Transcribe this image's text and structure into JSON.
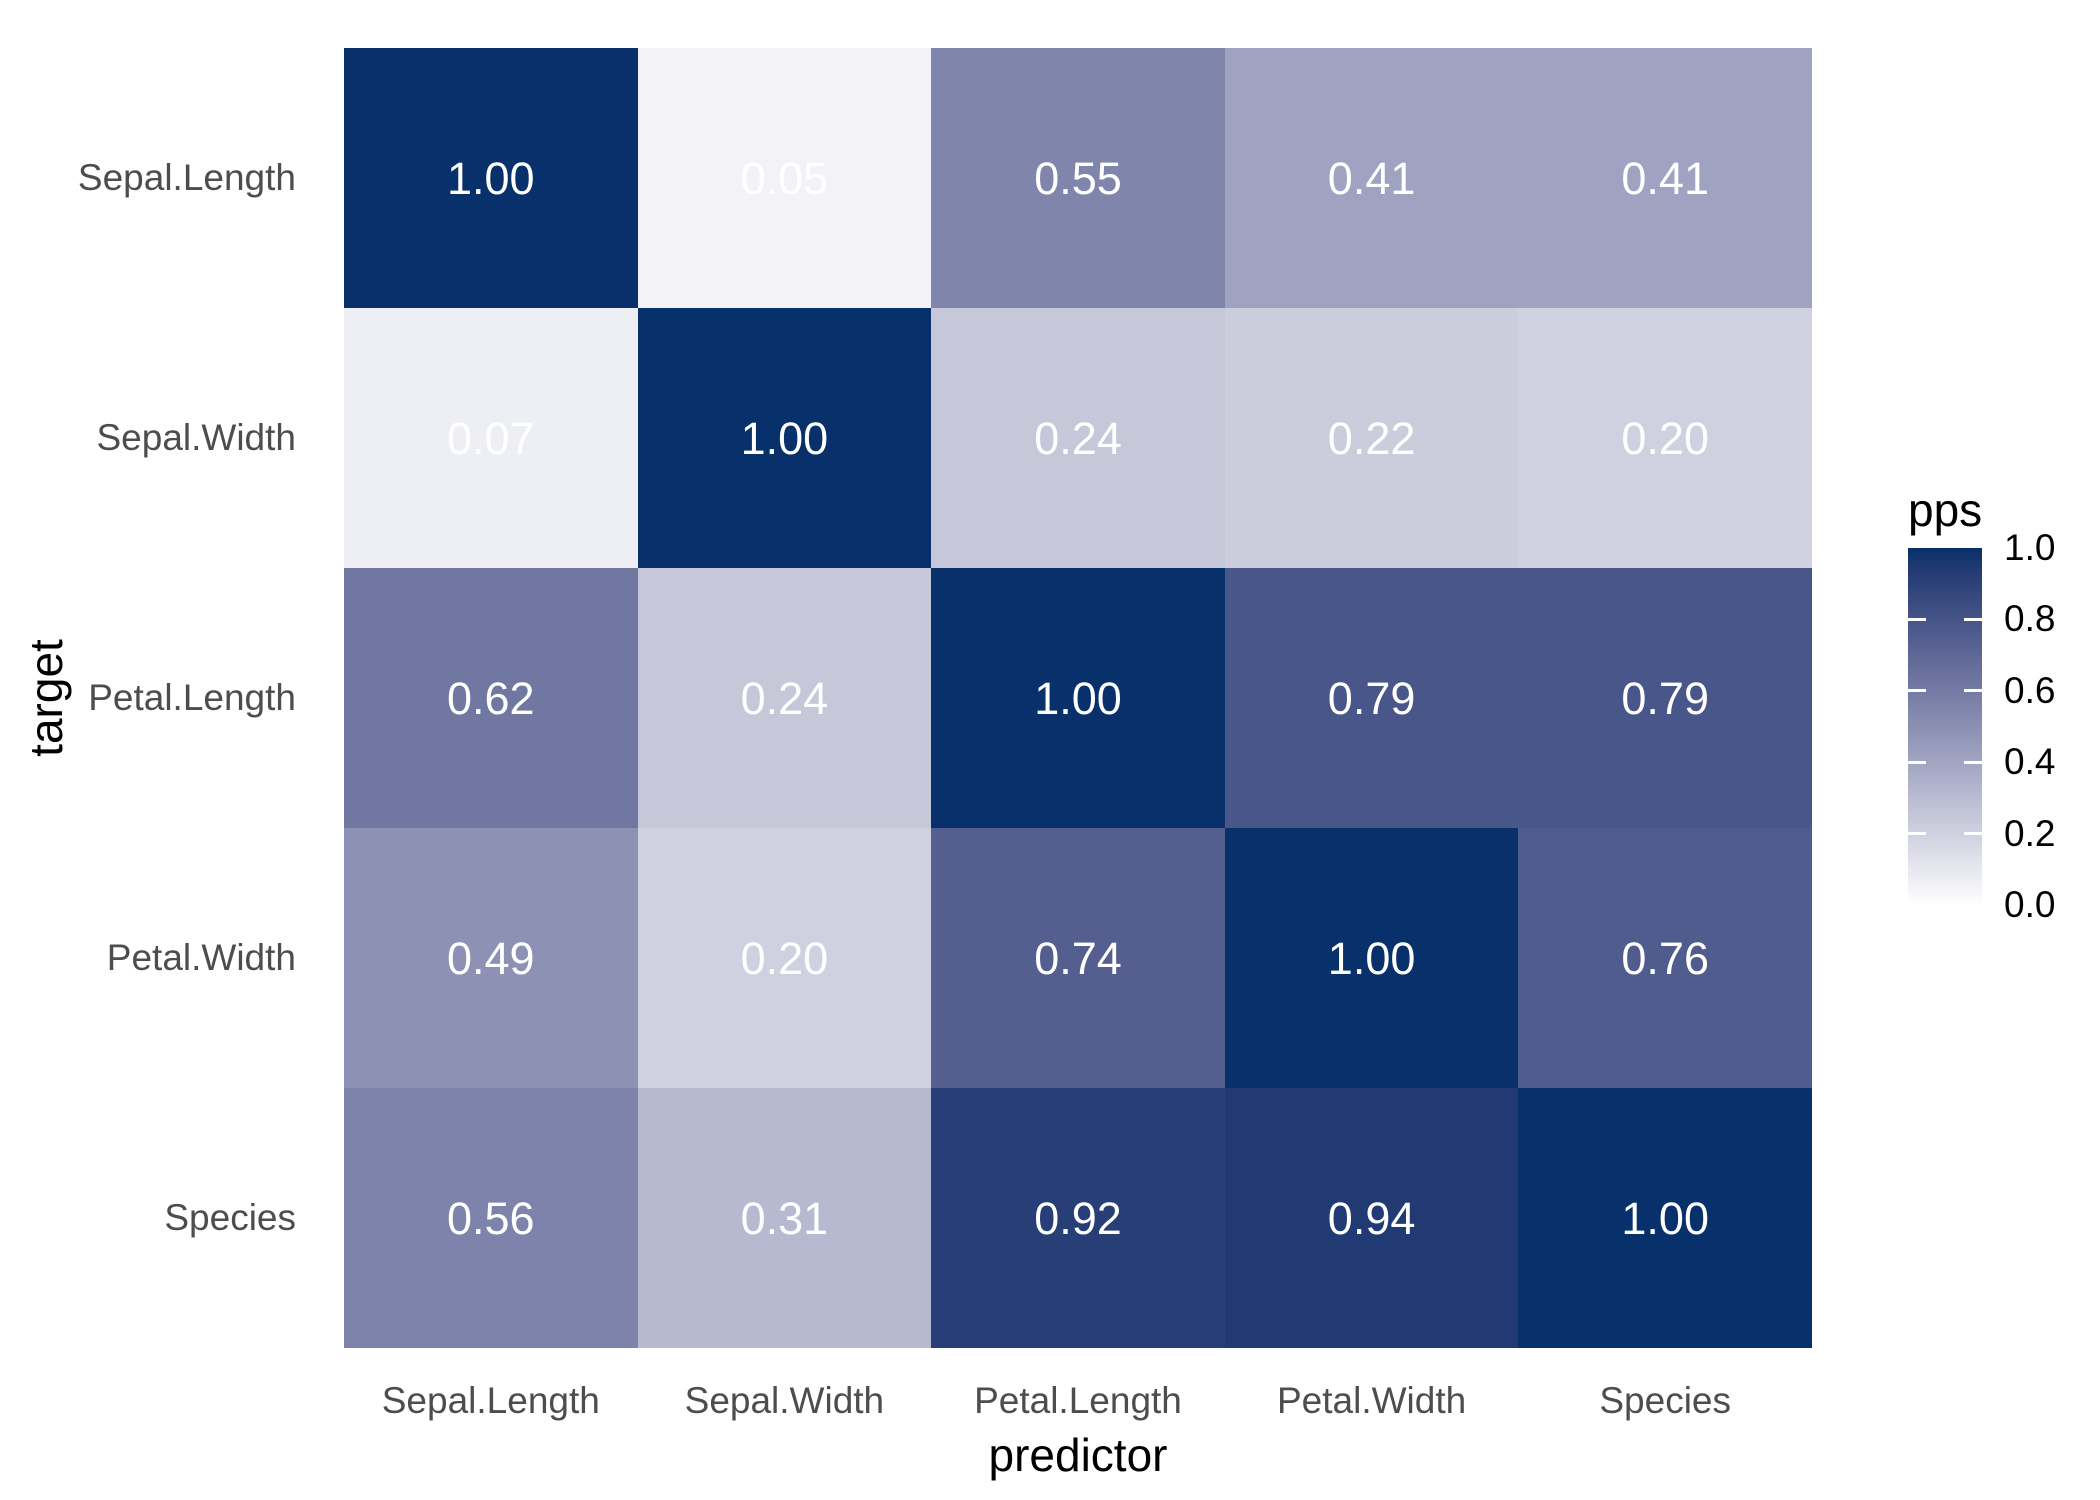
{
  "chart_data": {
    "type": "heatmap",
    "xlabel": "predictor",
    "ylabel": "target",
    "legend_title": "pps",
    "x_categories": [
      "Sepal.Length",
      "Sepal.Width",
      "Petal.Length",
      "Petal.Width",
      "Species"
    ],
    "y_categories": [
      "Sepal.Length",
      "Sepal.Width",
      "Petal.Length",
      "Petal.Width",
      "Species"
    ],
    "rows": [
      {
        "target": "Sepal.Length",
        "values": [
          1.0,
          0.05,
          0.55,
          0.41,
          0.41
        ]
      },
      {
        "target": "Sepal.Width",
        "values": [
          0.07,
          1.0,
          0.24,
          0.22,
          0.2
        ]
      },
      {
        "target": "Petal.Length",
        "values": [
          0.62,
          0.24,
          1.0,
          0.79,
          0.79
        ]
      },
      {
        "target": "Petal.Width",
        "values": [
          0.49,
          0.2,
          0.74,
          1.0,
          0.76
        ]
      },
      {
        "target": "Species",
        "values": [
          0.56,
          0.31,
          0.92,
          0.94,
          1.0
        ]
      }
    ],
    "value_decimals": 2,
    "grid": false,
    "legend_position": "right",
    "colorbar": {
      "min": 0.0,
      "max": 1.0,
      "ticks": [
        1.0,
        0.8,
        0.6,
        0.4,
        0.2,
        0.0
      ],
      "tick_labels": [
        "1.0",
        "0.8",
        "0.6",
        "0.4",
        "0.2",
        "0.0"
      ],
      "low_color": "#FFFFFF",
      "high_color": "#08306B",
      "interpolation": "lab"
    }
  },
  "colors": {
    "background": "#FFFFFF",
    "axis_text": "#4D4D4D",
    "axis_title": "#000000",
    "legend_text": "#000000",
    "cell_text": "#FFFFFF"
  }
}
